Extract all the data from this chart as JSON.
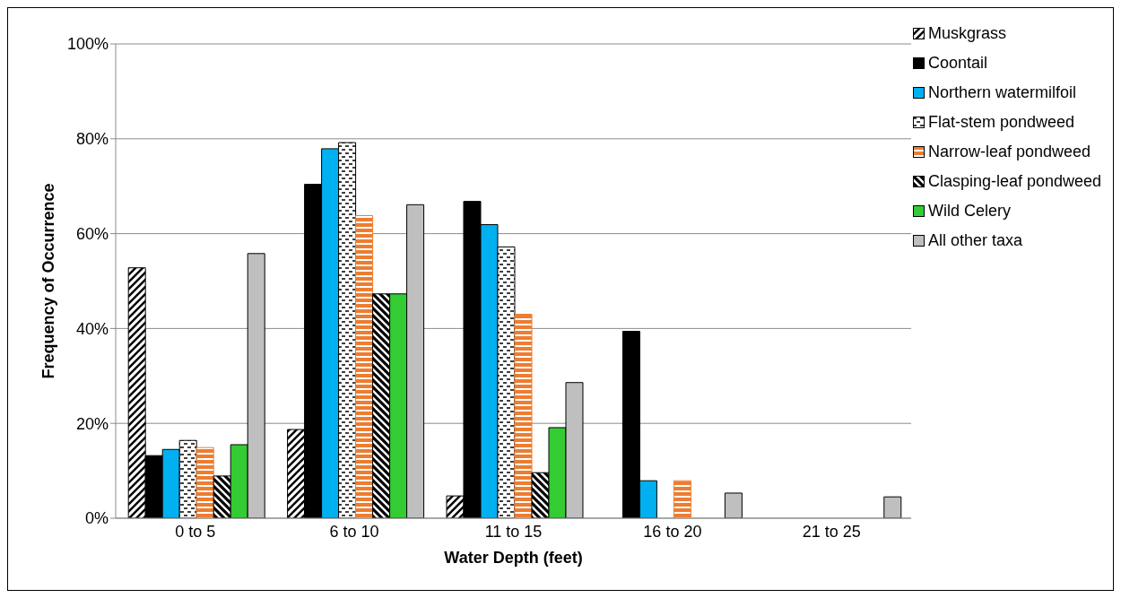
{
  "chart_data": {
    "type": "bar",
    "xlabel": "Water Depth (feet)",
    "ylabel": "Frequency of Occurrence",
    "categories": [
      "0 to 5",
      "6 to 10",
      "11 to 15",
      "16 to 20",
      "21 to 25"
    ],
    "series": [
      {
        "name": "Muskgrass",
        "color": "#000000",
        "values": [
          52.8,
          18.7,
          4.7,
          0,
          0
        ]
      },
      {
        "name": "Coontail",
        "color": "#000000",
        "values": [
          13.2,
          70.4,
          66.8,
          39.4,
          0
        ]
      },
      {
        "name": "Northern watermilfoil",
        "color": "#00b0f0",
        "values": [
          14.5,
          77.9,
          61.9,
          7.9,
          0
        ]
      },
      {
        "name": "Flat-stem pondweed",
        "color": "#000000",
        "values": [
          16.4,
          79.2,
          57.2,
          0,
          0
        ]
      },
      {
        "name": "Narrow-leaf pondweed",
        "color": "#ed7d31",
        "values": [
          14.9,
          63.8,
          43,
          7.9,
          0
        ]
      },
      {
        "name": "Clasping-leaf pondweed",
        "color": "#000000",
        "values": [
          8.9,
          47.3,
          9.6,
          0,
          0
        ]
      },
      {
        "name": "Wild Celery",
        "color": "#33cc33",
        "values": [
          15.5,
          47.3,
          19.1,
          0,
          0
        ]
      },
      {
        "name": "All other taxa",
        "color": "#bfbfbf",
        "values": [
          55.8,
          66.1,
          28.6,
          5.3,
          4.5
        ]
      }
    ],
    "ylim": [
      0,
      100
    ],
    "yticks": [
      {
        "value": 0,
        "label": "0%"
      },
      {
        "value": 20,
        "label": "20%"
      },
      {
        "value": 40,
        "label": "40%"
      },
      {
        "value": 60,
        "label": "60%"
      },
      {
        "value": 80,
        "label": "80%"
      },
      {
        "value": 100,
        "label": "100%"
      }
    ],
    "grid": "y",
    "legend": "right"
  }
}
